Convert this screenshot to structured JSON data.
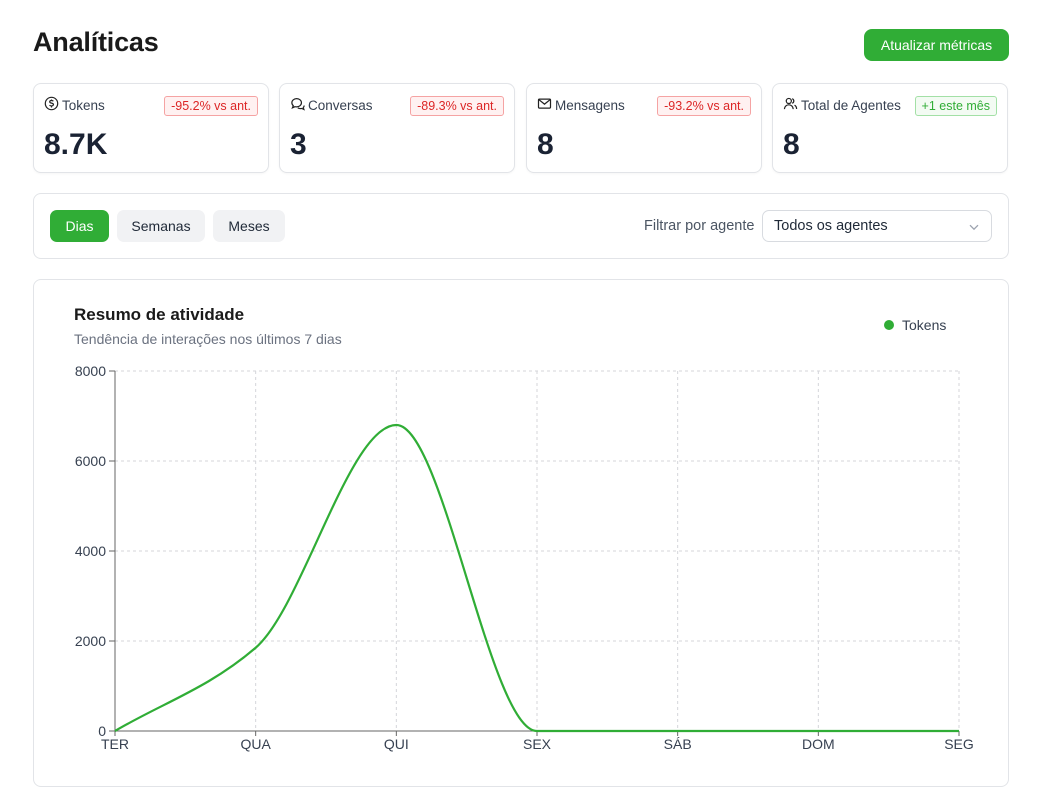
{
  "header": {
    "title": "Analíticas",
    "refresh_label": "Atualizar métricas"
  },
  "colors": {
    "accent": "#30ad36",
    "negative": "#dc2626",
    "positive": "#30ad36"
  },
  "stats": [
    {
      "label": "Tokens",
      "icon": "dollar-circle-icon",
      "badge": "-95.2% vs ant.",
      "trend": "negative",
      "value": "8.7K"
    },
    {
      "label": "Conversas",
      "icon": "chat-bubbles-icon",
      "badge": "-89.3% vs ant.",
      "trend": "negative",
      "value": "3"
    },
    {
      "label": "Mensagens",
      "icon": "envelope-icon",
      "badge": "-93.2% vs ant.",
      "trend": "negative",
      "value": "8"
    },
    {
      "label": "Total de Agentes",
      "icon": "users-icon",
      "badge": "+1 este mês",
      "trend": "positive",
      "value": "8"
    }
  ],
  "filters": {
    "periods": [
      "Dias",
      "Semanas",
      "Meses"
    ],
    "active_period": "Dias",
    "agent_label": "Filtrar por agente",
    "agent_selected": "Todos os agentes"
  },
  "chart": {
    "title": "Resumo de atividade",
    "subtitle": "Tendência de interações nos últimos 7 dias",
    "legend_label": "Tokens"
  },
  "chart_data": {
    "type": "line",
    "title": "Resumo de atividade",
    "subtitle": "Tendência de interações nos últimos 7 dias",
    "categories": [
      "TER",
      "QUA",
      "QUI",
      "SEX",
      "SÁB",
      "DOM",
      "SEG"
    ],
    "series": [
      {
        "name": "Tokens",
        "values": [
          0,
          1850,
          6800,
          0,
          0,
          0,
          0
        ]
      }
    ],
    "ylim": [
      0,
      8000
    ],
    "yticks": [
      0,
      2000,
      4000,
      6000,
      8000
    ],
    "grid": true,
    "legend": "top-right"
  }
}
